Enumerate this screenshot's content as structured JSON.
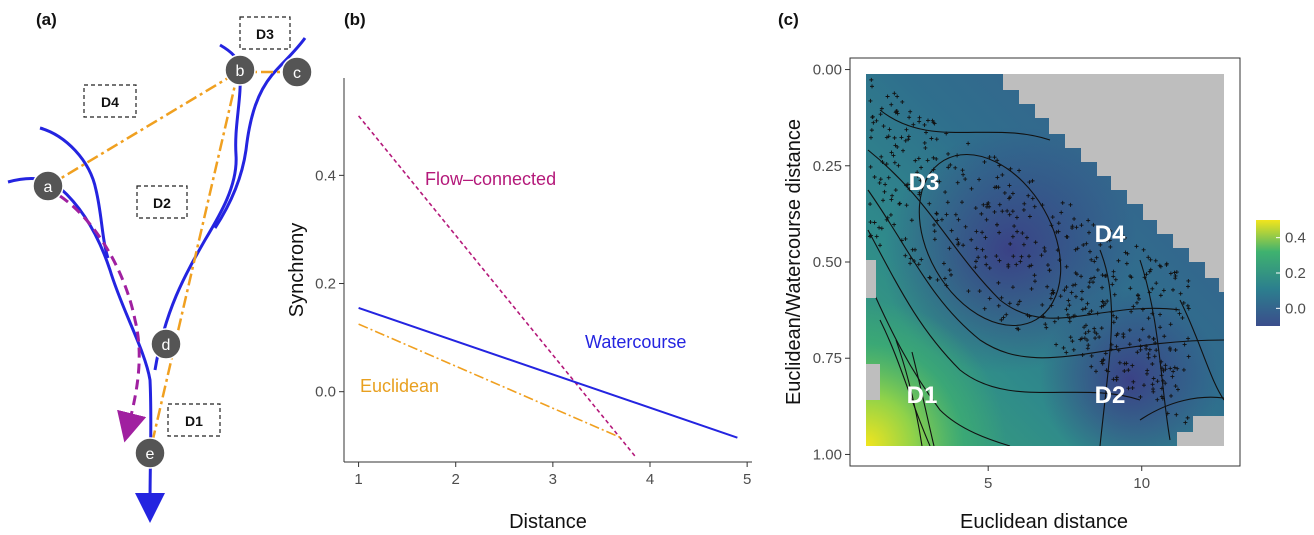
{
  "panels": {
    "a": {
      "label": "(a)",
      "sites": [
        "a",
        "b",
        "c",
        "d",
        "e"
      ],
      "distance_boxes": [
        "D1",
        "D2",
        "D3",
        "D4"
      ]
    },
    "b": {
      "label": "(b)"
    },
    "c": {
      "label": "(c)",
      "region_labels": [
        "D1",
        "D2",
        "D3",
        "D4"
      ]
    }
  },
  "colors": {
    "river": "#2424e0",
    "euclidean": "#f0a020",
    "flow": "#b4197a",
    "site": "#555555"
  },
  "chart_data": [
    {
      "type": "line",
      "panel": "b",
      "xlabel": "Distance",
      "ylabel": "Synchrony",
      "xlim": [
        0.85,
        5.05
      ],
      "ylim": [
        -0.13,
        0.58
      ],
      "x_ticks": [
        "1",
        "2",
        "3",
        "4",
        "5"
      ],
      "y_ticks": [
        "0.0",
        "0.2",
        "0.4"
      ],
      "grid": false,
      "legend": "inline labels",
      "series": [
        {
          "name": "Flow–connected",
          "color": "#b4197a",
          "style": "dashed",
          "x": [
            1.0,
            3.85
          ],
          "y": [
            0.51,
            -0.12
          ]
        },
        {
          "name": "Watercourse",
          "color": "#2424e0",
          "style": "solid",
          "x": [
            1.0,
            4.9
          ],
          "y": [
            0.155,
            -0.085
          ]
        },
        {
          "name": "Euclidean",
          "color": "#f0a020",
          "style": "dashdot",
          "x": [
            1.0,
            3.7
          ],
          "y": [
            0.125,
            -0.085
          ]
        }
      ]
    },
    {
      "type": "heatmap",
      "panel": "c",
      "xlabel": "Euclidean distance",
      "ylabel": "Euclidean/Watercourse distance",
      "x_ticks": [
        "5",
        "10"
      ],
      "y_ticks": [
        "0.00",
        "0.25",
        "0.50",
        "0.75",
        "1.00"
      ],
      "xlim": [
        0.5,
        13.2
      ],
      "ylim": [
        1.03,
        -0.03
      ],
      "y_reversed": true,
      "colorbar": {
        "ticks": [
          "0.4",
          "0.2",
          "0.0"
        ],
        "range": [
          -0.1,
          0.5
        ],
        "colors": [
          "#3b4d8c",
          "#2c7f8e",
          "#3fb26f",
          "#f2e51d"
        ]
      },
      "background": "#bebebe",
      "overlays": [
        "contour lines",
        "data points (+)"
      ]
    }
  ]
}
